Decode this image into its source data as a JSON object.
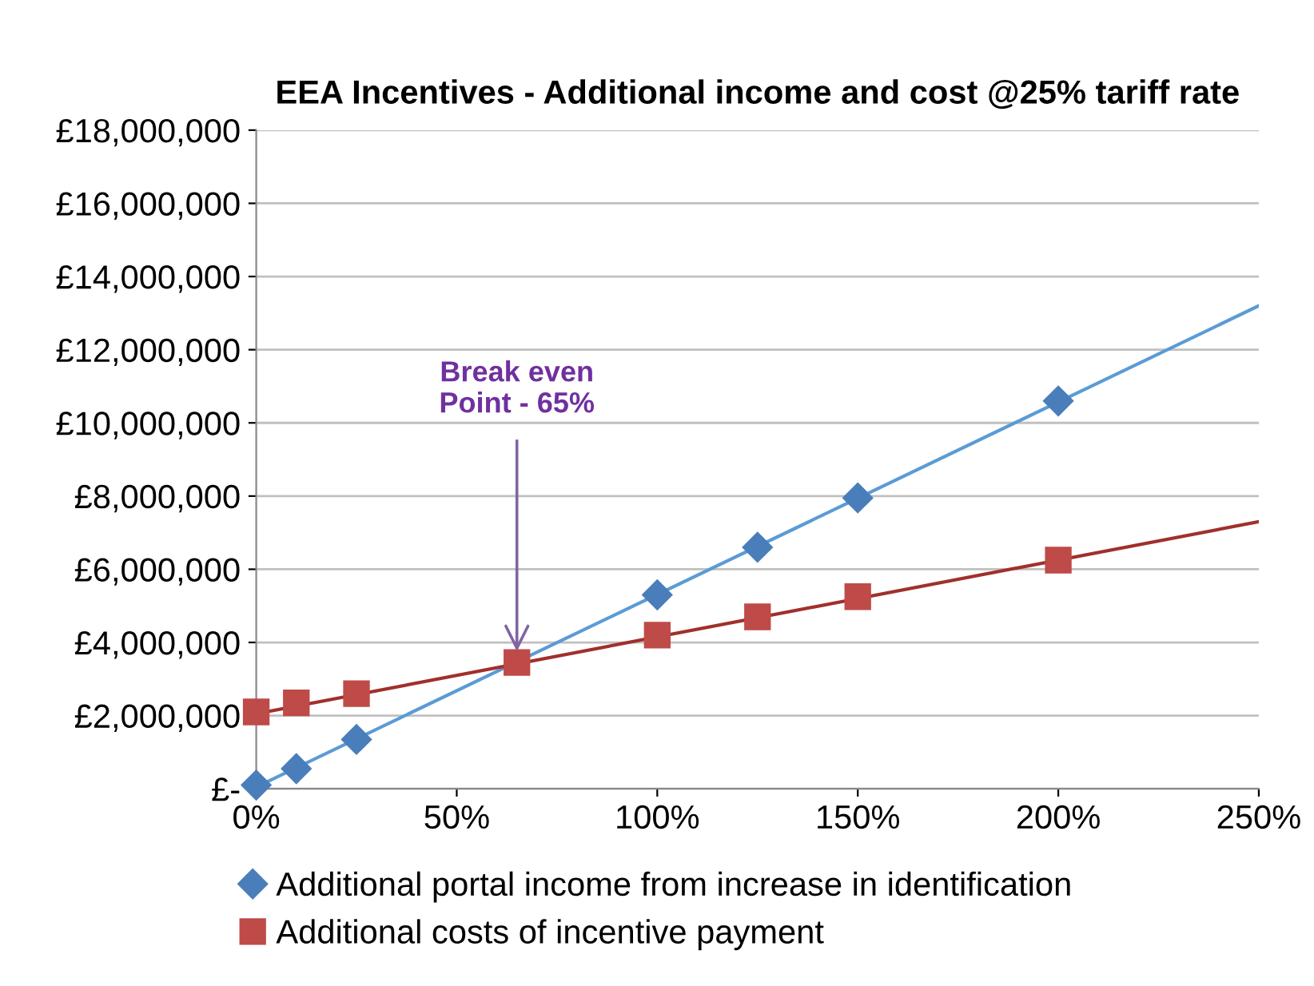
{
  "chart_data": {
    "type": "scatter",
    "title": "EEA Incentives - Additional income and cost @25% tariff rate",
    "series": [
      {
        "name": "Additional portal income from increase in identification",
        "color": "#4a7ebb",
        "marker": "diamond",
        "x": [
          0,
          10,
          25,
          100,
          125,
          150,
          200
        ],
        "values": [
          100000,
          550000,
          1350000,
          5300000,
          6600000,
          7950000,
          10600000
        ]
      },
      {
        "name": "Additional costs of incentive payment",
        "color": "#be4b48",
        "marker": "square",
        "x": [
          0,
          10,
          25,
          65,
          100,
          125,
          150,
          200
        ],
        "values": [
          2100000,
          2350000,
          2600000,
          3450000,
          4200000,
          4700000,
          5250000,
          6250000
        ]
      },
      {
        "type": "line",
        "color": "#5b9bd5",
        "marker": "none",
        "line_style": "solid",
        "x": [
          0,
          250
        ],
        "values": [
          50000,
          13200000
        ]
      },
      {
        "type": "line",
        "color": "#a0302c",
        "marker": "none",
        "line_style": "solid",
        "x": [
          0,
          250
        ],
        "values": [
          2050000,
          7300000
        ]
      }
    ],
    "annotations": [
      {
        "text": "Break even\nPoint - 65%",
        "x": 65,
        "y": 3450000
      }
    ],
    "xlim": [
      0,
      250
    ],
    "xticks": [
      {
        "value": 0,
        "label": "0%"
      },
      {
        "value": 50,
        "label": "50%"
      },
      {
        "value": 100,
        "label": "100%"
      },
      {
        "value": 150,
        "label": "150%"
      },
      {
        "value": 200,
        "label": "200%"
      },
      {
        "value": 250,
        "label": "250%"
      }
    ],
    "ylim": [
      0,
      18000000
    ],
    "yticks": [
      {
        "value": 0,
        "label": "£-"
      },
      {
        "value": 2000000,
        "label": "£2,000,000"
      },
      {
        "value": 4000000,
        "label": "£4,000,000"
      },
      {
        "value": 6000000,
        "label": "£6,000,000"
      },
      {
        "value": 8000000,
        "label": "£8,000,000"
      },
      {
        "value": 10000000,
        "label": "£10,000,000"
      },
      {
        "value": 12000000,
        "label": "£12,000,000"
      },
      {
        "value": 14000000,
        "label": "£14,000,000"
      },
      {
        "value": 16000000,
        "label": "£16,000,000"
      },
      {
        "value": 18000000,
        "label": "£18,000,000"
      }
    ],
    "grid": "y",
    "legend": "bottom"
  }
}
